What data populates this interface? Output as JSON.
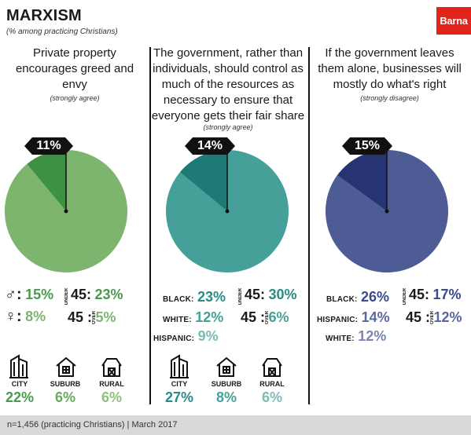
{
  "header": {
    "title": "MARXISM",
    "subtitle": "(% among practicing Christians)",
    "logo": "Barna"
  },
  "footer": {
    "note": "n=1,456 (practicing Christians) | March 2017"
  },
  "colors": {
    "green_dark": "#3c9142",
    "green_light": "#7db56e",
    "teal_dark": "#1e7a74",
    "teal_light": "#46a09a",
    "navy_dark": "#263473",
    "navy_light": "#4e5c95",
    "green_text": "#4a9a4e",
    "green_text_light": "#7db56e",
    "teal_text": "#2a8a84",
    "teal_text_light": "#5aaea8",
    "navy_text": "#3a4a8a",
    "navy_text_light": "#7b84b4"
  },
  "icons": {
    "city": "city-building-icon",
    "suburb": "suburb-house-icon",
    "rural": "rural-barn-icon"
  },
  "chart_data": [
    {
      "type": "pie",
      "title": "Private property encourages greed and envy",
      "note": "(strongly agree)",
      "value_label": "11%",
      "slices": [
        {
          "name": "",
          "value": 11
        },
        {
          "name": "",
          "value": 89
        }
      ],
      "gender": {
        "male": "15%",
        "female": "8%"
      },
      "age": {
        "under_label": "UNDER",
        "over_label": "OVER",
        "age": "45",
        "under": "23%",
        "over": "5%"
      },
      "community": [
        {
          "label": "CITY",
          "value": "22%"
        },
        {
          "label": "SUBURB",
          "value": "6%"
        },
        {
          "label": "RURAL",
          "value": "6%"
        }
      ]
    },
    {
      "type": "pie",
      "title": "The government, rather than individuals, should control as much of the resources as necessary to ensure that everyone gets their fair share",
      "note": "(strongly agree)",
      "value_label": "14%",
      "slices": [
        {
          "name": "",
          "value": 14
        },
        {
          "name": "",
          "value": 86
        }
      ],
      "ethnicity": [
        {
          "label": "BLACK:",
          "value": "23%"
        },
        {
          "label": "WHITE:",
          "value": "12%"
        },
        {
          "label": "HISPANIC:",
          "value": "9%"
        }
      ],
      "age": {
        "under_label": "UNDER",
        "over_label": "OVER",
        "age": "45",
        "under": "30%",
        "over": "6%"
      },
      "community": [
        {
          "label": "CITY",
          "value": "27%"
        },
        {
          "label": "SUBURB",
          "value": "8%"
        },
        {
          "label": "RURAL",
          "value": "6%"
        }
      ]
    },
    {
      "type": "pie",
      "title": "If the government leaves them alone, businesses will mostly do what's right",
      "note": "(strongly disagree)",
      "value_label": "15%",
      "slices": [
        {
          "name": "",
          "value": 15
        },
        {
          "name": "",
          "value": 85
        }
      ],
      "ethnicity": [
        {
          "label": "BLACK:",
          "value": "26%"
        },
        {
          "label": "HISPANIC:",
          "value": "14%"
        },
        {
          "label": "WHITE:",
          "value": "12%"
        }
      ],
      "age": {
        "under_label": "UNDER",
        "over_label": "OVER",
        "age": "45",
        "under": "17%",
        "over": "12%"
      }
    }
  ]
}
